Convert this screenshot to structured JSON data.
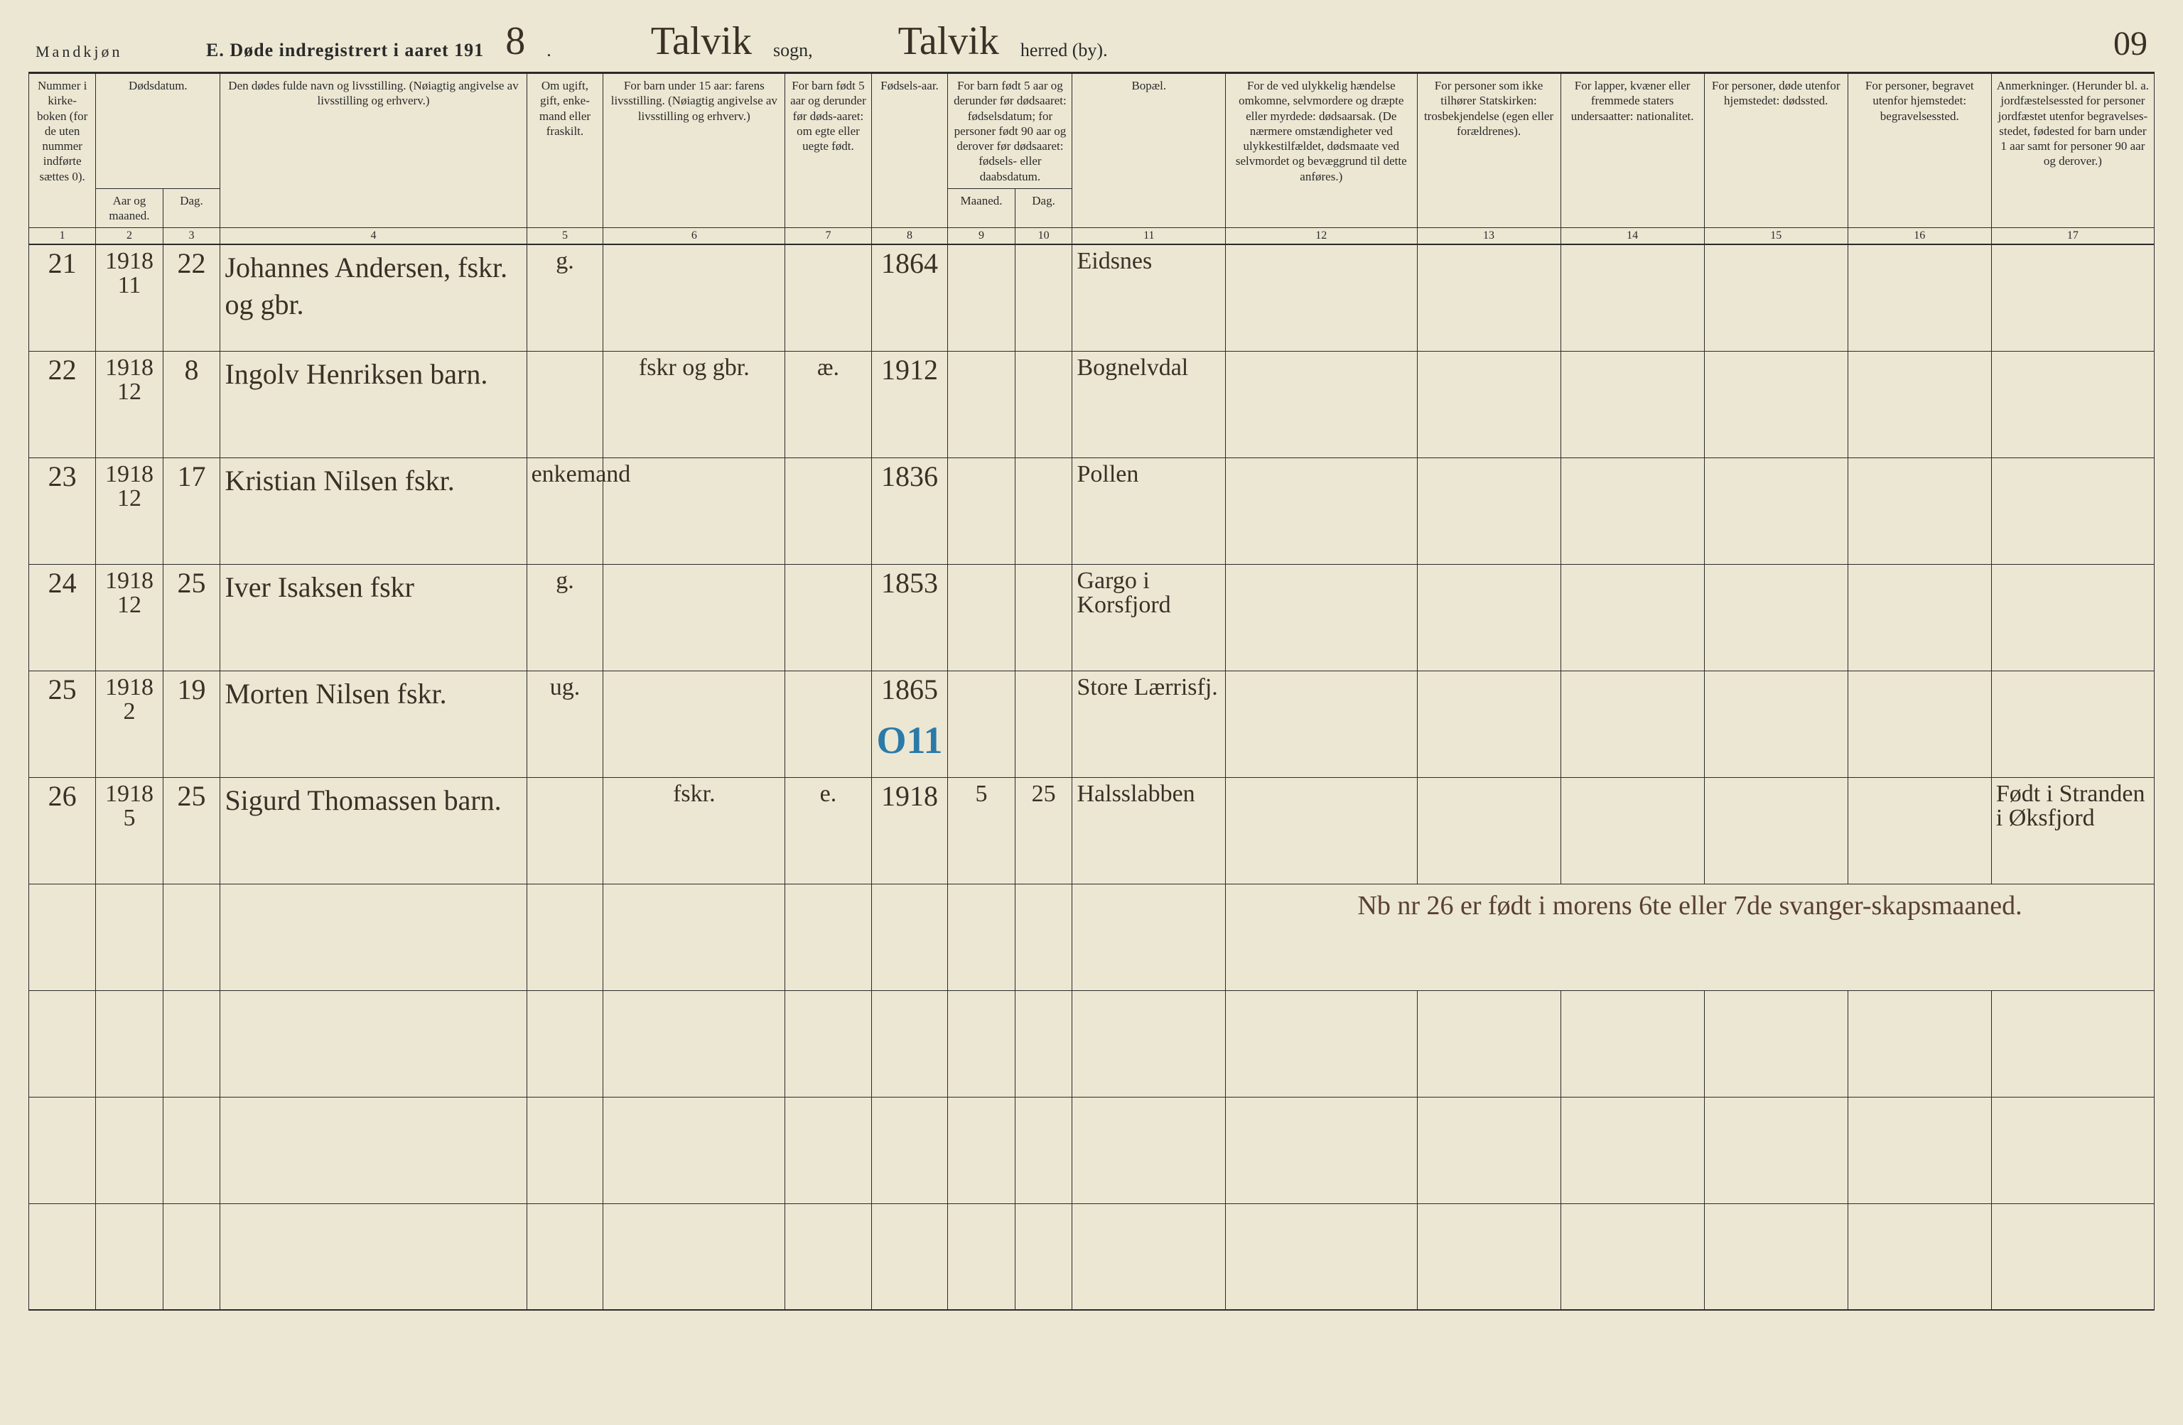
{
  "header": {
    "corner_label": "Mandkjøn",
    "title_prefix": "E.  Døde indregistrert i aaret 191",
    "year_suffix_hand": "8",
    "sogn_label": "sogn,",
    "sogn_hand": "Talvik",
    "herred_label": "herred (by).",
    "herred_hand": "Talvik",
    "page_number_hand": "09"
  },
  "colors": {
    "paper": "#ece7d3",
    "ink": "#2a2a2a",
    "hand_ink": "#3a3026",
    "blue_pencil": "#2b7aa8",
    "brown_ink": "#5a4030"
  },
  "columns": {
    "c1": "Nummer i kirke-boken (for de uten nummer indførte sættes 0).",
    "c2": "Dødsdatum.",
    "c2a": "Aar og maaned.",
    "c2b": "Dag.",
    "c4": "Den dødes fulde navn og livsstilling. (Nøiagtig angivelse av livsstilling og erhverv.)",
    "c5": "Om ugift, gift, enke-mand eller fraskilt.",
    "c6": "For barn under 15 aar: farens livsstilling. (Nøiagtig angivelse av livsstilling og erhverv.)",
    "c7": "For barn født 5 aar og derunder før døds-aaret: om egte eller uegte født.",
    "c8": "Fødsels-aar.",
    "c9_10": "For barn født 5 aar og derunder før dødsaaret: fødselsdatum; for personer født 90 aar og derover før dødsaaret: fødsels- eller daabsdatum.",
    "c9": "Maaned.",
    "c10": "Dag.",
    "c11": "Bopæl.",
    "c12": "For de ved ulykkelig hændelse omkomne, selvmordere og dræpte eller myrdede: dødsaarsak. (De nærmere omstændigheter ved ulykkestilfældet, dødsmaate ved selvmordet og bevæggrund til dette anføres.)",
    "c13": "For personer som ikke tilhører Statskirken: trosbekjendelse (egen eller forældrenes).",
    "c14": "For lapper, kvæner eller fremmede staters undersaatter: nationalitet.",
    "c15": "For personer, døde utenfor hjemstedet: dødssted.",
    "c16": "For personer, begravet utenfor hjemstedet: begravelsessted.",
    "c17": "Anmerkninger. (Herunder bl. a. jordfæstelsessted for personer jordfæstet utenfor begravelses-stedet, fødested for barn under 1 aar samt for personer 90 aar og derover.)"
  },
  "colnums": [
    "1",
    "2",
    "3",
    "4",
    "5",
    "6",
    "7",
    "8",
    "9",
    "10",
    "11",
    "12",
    "13",
    "14",
    "15",
    "16",
    "17"
  ],
  "rows": [
    {
      "num": "21",
      "year_month": "1918 11",
      "day": "22",
      "name": "Johannes Andersen, fskr. og gbr.",
      "civil": "g.",
      "father": "",
      "legit": "",
      "birth_year": "1864",
      "b_month": "",
      "b_day": "",
      "residence": "Eidsnes",
      "blue": "",
      "remarks": ""
    },
    {
      "num": "22",
      "year_month": "1918 12",
      "day": "8",
      "name": "Ingolv Henriksen barn.",
      "civil": "",
      "father": "fskr og gbr.",
      "legit": "æ.",
      "birth_year": "1912",
      "b_month": "",
      "b_day": "",
      "residence": "Bognelvdal",
      "blue": "",
      "remarks": ""
    },
    {
      "num": "23",
      "year_month": "1918 12",
      "day": "17",
      "name": "Kristian Nilsen fskr.",
      "civil": "enkemand",
      "father": "",
      "legit": "",
      "birth_year": "1836",
      "b_month": "",
      "b_day": "",
      "residence": "Pollen",
      "blue": "",
      "remarks": ""
    },
    {
      "num": "24",
      "year_month": "1918 12",
      "day": "25",
      "name": "Iver Isaksen fskr",
      "civil": "g.",
      "father": "",
      "legit": "",
      "birth_year": "1853",
      "b_month": "",
      "b_day": "",
      "residence": "Gargo i Korsfjord",
      "blue": "",
      "remarks": ""
    },
    {
      "num": "25",
      "year_month": "1918 2",
      "day": "19",
      "name": "Morten Nilsen fskr.",
      "civil": "ug.",
      "father": "",
      "legit": "",
      "birth_year": "1865",
      "b_month": "",
      "b_day": "",
      "residence": "Store Lærrisfj.",
      "blue": "O11",
      "remarks": ""
    },
    {
      "num": "26",
      "year_month": "1918 5",
      "day": "25",
      "name": "Sigurd Thomassen barn.",
      "civil": "",
      "father": "fskr.",
      "legit": "e.",
      "birth_year": "1918",
      "b_month": "5",
      "b_day": "25",
      "residence": "Halsslabben",
      "blue": "",
      "remarks": "Født i Stranden i Øksfjord"
    }
  ],
  "annotation": "Nb nr 26 er født i morens 6te eller 7de svanger-skapsmaaned."
}
